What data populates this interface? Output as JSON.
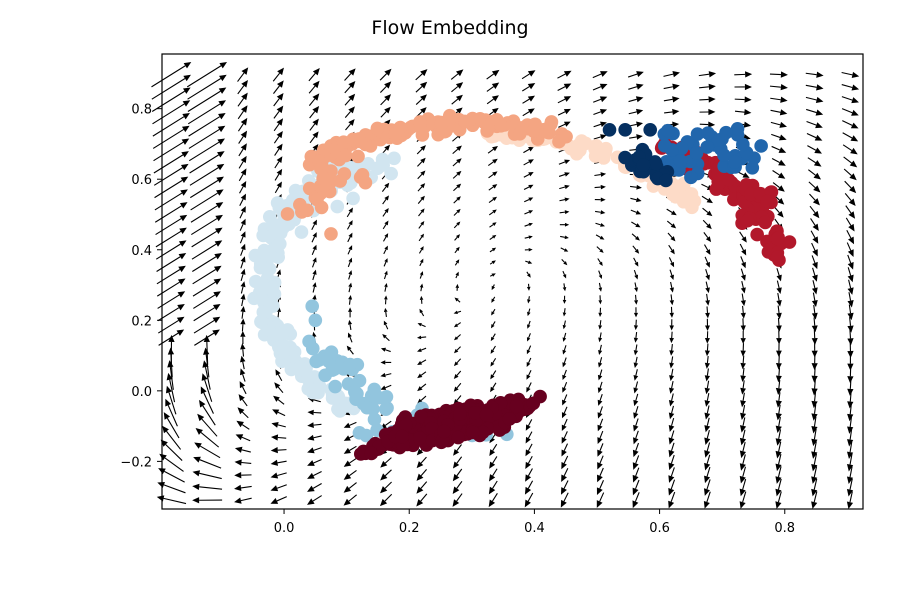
{
  "chart_data": {
    "type": "scatter",
    "title": "Flow Embedding",
    "xlabel": "",
    "ylabel": "",
    "xlim": [
      -0.195,
      0.925
    ],
    "ylim": [
      -0.335,
      0.955
    ],
    "x_ticks": [
      0.0,
      0.2,
      0.4,
      0.6,
      0.8
    ],
    "x_tick_labels": [
      "0.0",
      "0.2",
      "0.4",
      "0.6",
      "0.8"
    ],
    "y_ticks": [
      -0.2,
      0.0,
      0.2,
      0.4,
      0.6,
      0.8
    ],
    "y_tick_labels": [
      "−0.2",
      "0.0",
      "0.2",
      "0.4",
      "0.6",
      "0.8"
    ],
    "grid": false,
    "legend": "none",
    "overlay": "quiver vector field (black arrows) on a regular grid",
    "colormap": "RdBu diverging",
    "series": [
      {
        "color": "#67001f",
        "description": "dark red cluster near bottom",
        "x_range": [
          0.1,
          0.4
        ],
        "y_range": [
          -0.18,
          -0.05
        ]
      },
      {
        "color": "#92c5de",
        "description": "light blue, lower left arc",
        "x_range": [
          0.02,
          0.2
        ],
        "y_range": [
          -0.15,
          0.26
        ]
      },
      {
        "color": "#d1e5f0",
        "description": "pale blue, left arc",
        "x_range": [
          -0.04,
          0.12
        ],
        "y_range": [
          0.0,
          0.62
        ]
      },
      {
        "color": "#f4a582",
        "description": "salmon, upper arc",
        "x_range": [
          0.08,
          0.58
        ],
        "y_range": [
          0.44,
          0.78
        ]
      },
      {
        "color": "#fddbc7",
        "description": "pale peach, upper arc inner",
        "x_range": [
          0.2,
          0.66
        ],
        "y_range": [
          0.65,
          0.76
        ]
      },
      {
        "color": "#b2182b",
        "description": "red, upper right",
        "x_range": [
          0.5,
          0.78
        ],
        "y_range": [
          0.46,
          0.8
        ]
      },
      {
        "color": "#2166ac",
        "description": "blue, upper right",
        "x_range": [
          0.58,
          0.76
        ],
        "y_range": [
          0.6,
          0.76
        ]
      },
      {
        "color": "#053061",
        "description": "navy, upper right",
        "x_range": [
          0.5,
          0.63
        ],
        "y_range": [
          0.59,
          0.75
        ]
      }
    ]
  }
}
